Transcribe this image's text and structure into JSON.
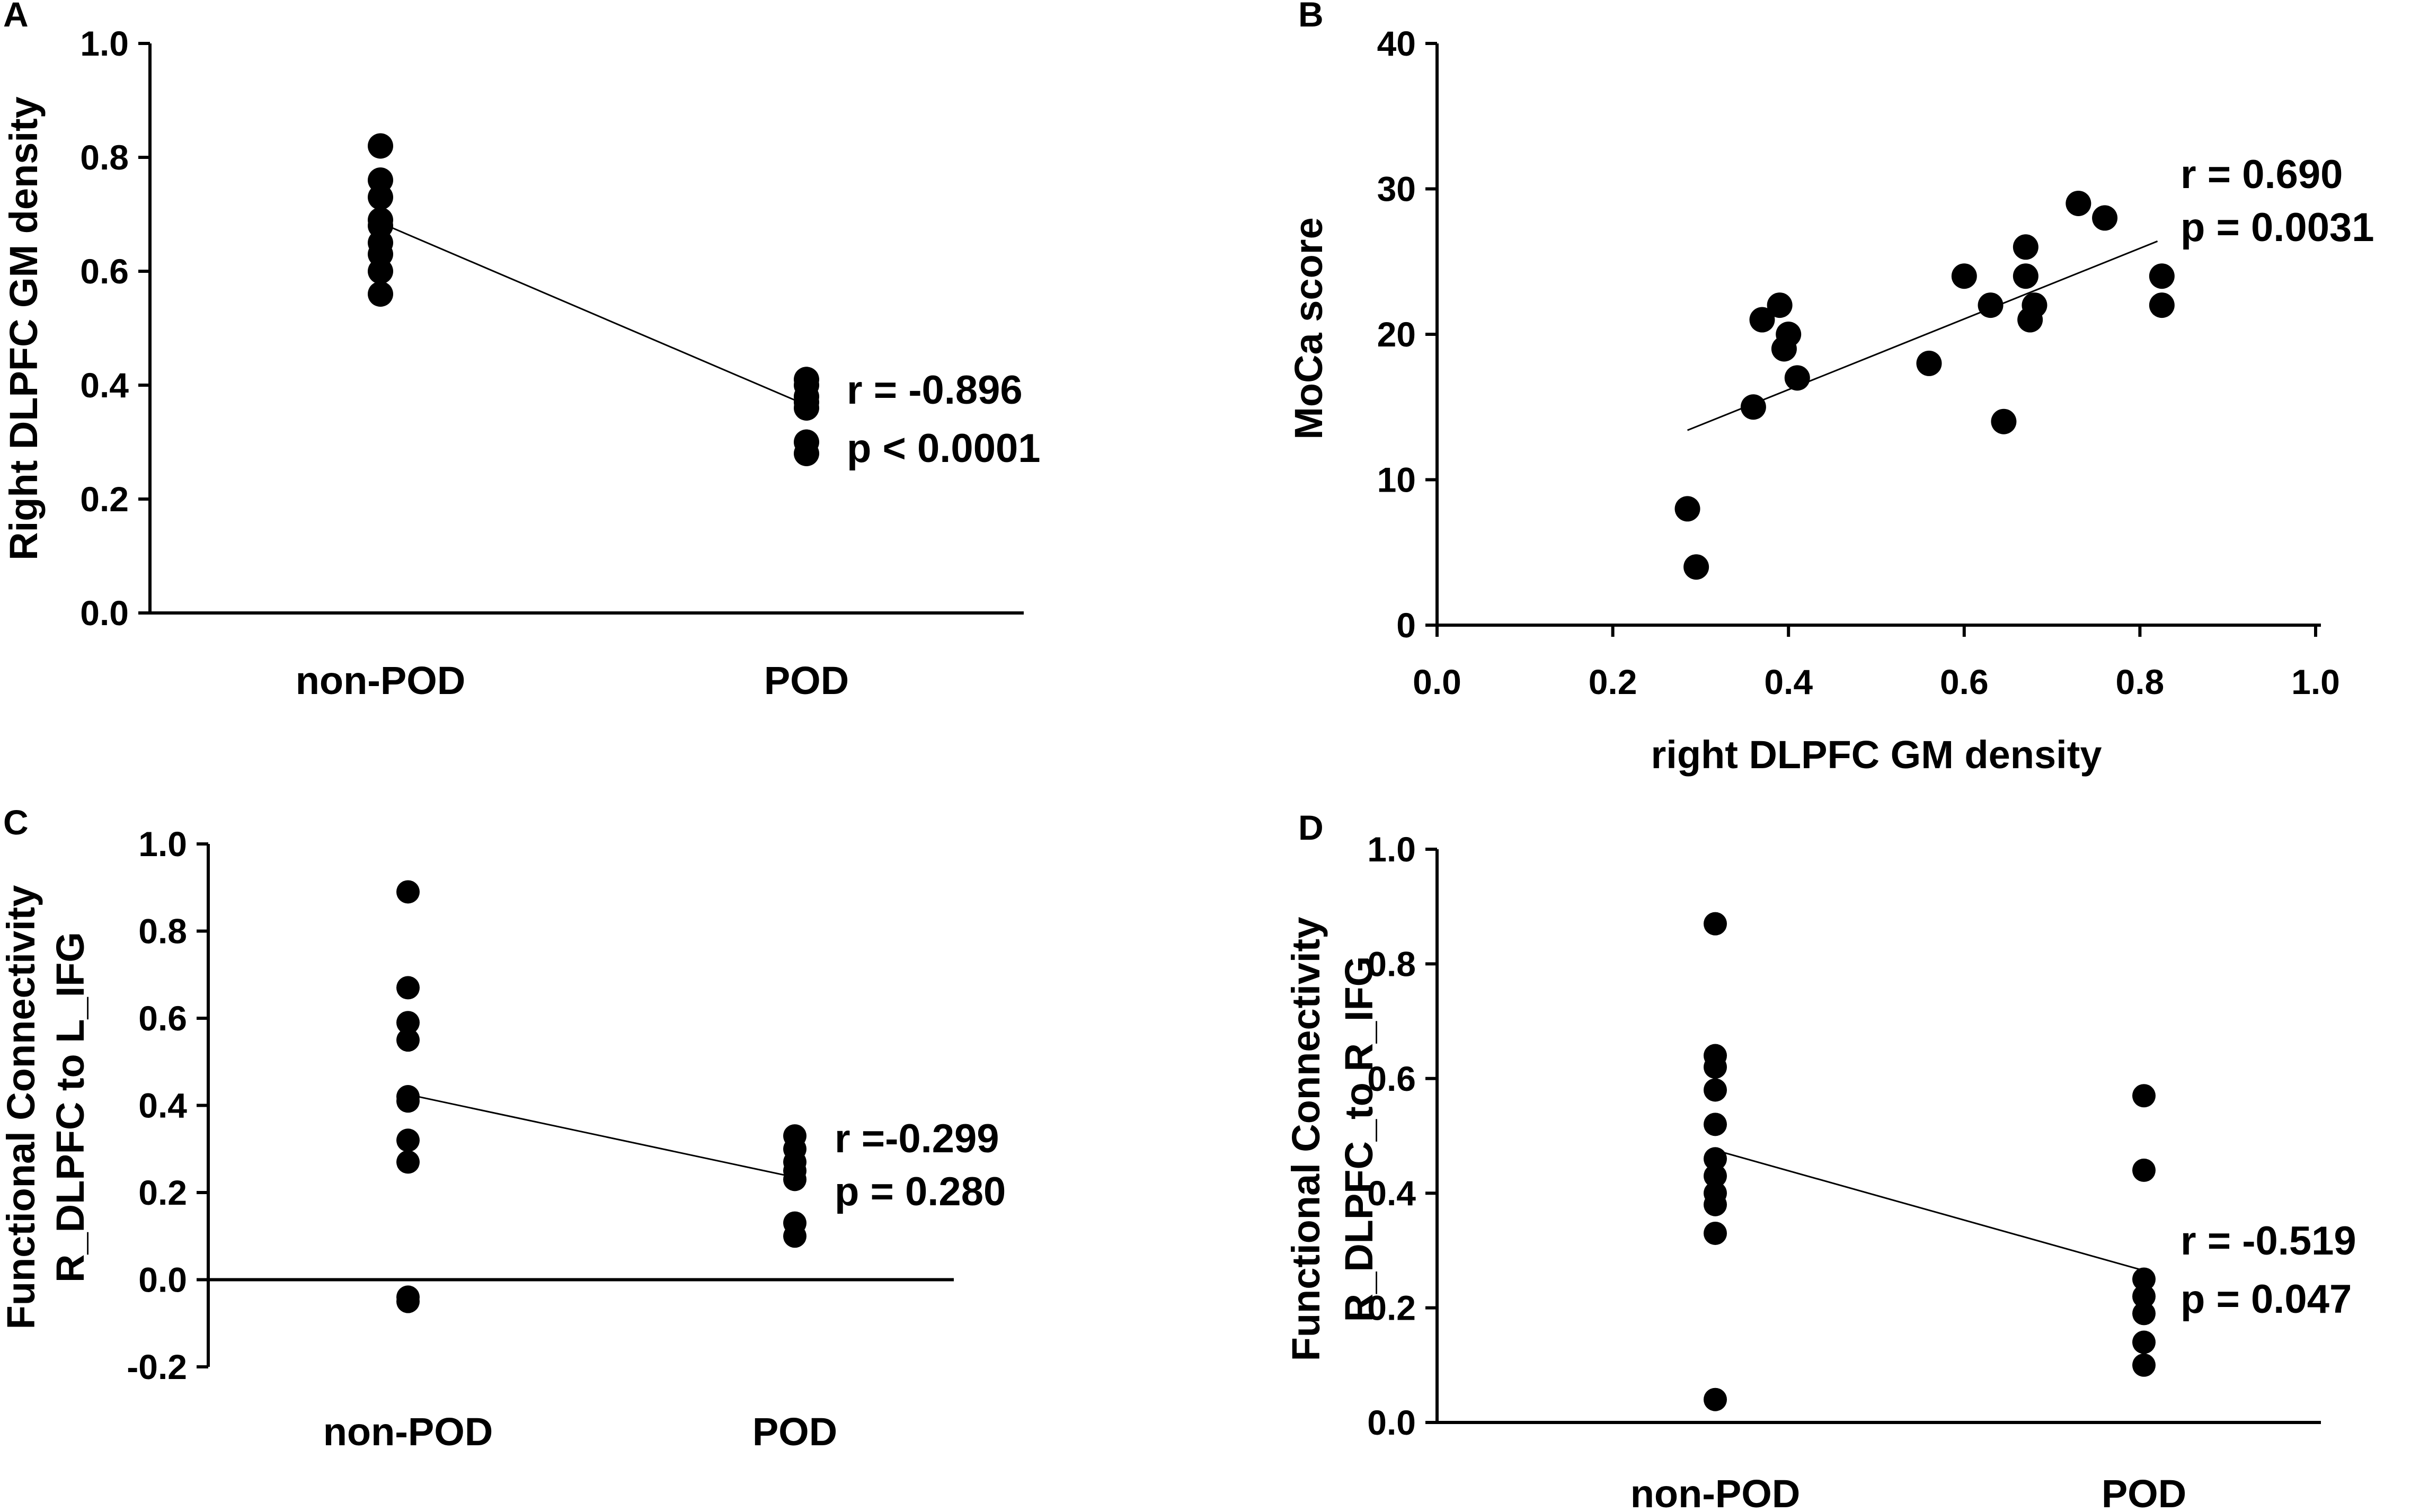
{
  "figure": {
    "background": "#ffffff",
    "marker_color": "#000000"
  },
  "chart_data": [
    {
      "panel": "A",
      "type": "scatter",
      "title": "",
      "xlabel": "",
      "ylabel": "Right DLPFC GM density",
      "categories": [
        "non-POD",
        "POD"
      ],
      "ylim": [
        0,
        1
      ],
      "yticks": [
        0,
        0.2,
        0.4,
        0.6,
        0.8,
        1.0
      ],
      "ytick_labels": [
        "0.0",
        "0.2",
        "0.4",
        "0.6",
        "0.8",
        "1.0"
      ],
      "series": [
        {
          "name": "non-POD",
          "values": [
            0.82,
            0.76,
            0.73,
            0.69,
            0.68,
            0.65,
            0.63,
            0.6,
            0.56
          ]
        },
        {
          "name": "POD",
          "values": [
            0.41,
            0.4,
            0.38,
            0.37,
            0.36,
            0.3,
            0.28
          ]
        }
      ],
      "mean_line": [
        0.685,
        0.365
      ],
      "annotation": {
        "r": "r = -0.896",
        "p": "p < 0.0001"
      }
    },
    {
      "panel": "B",
      "type": "scatter",
      "title": "",
      "xlabel": "right DLPFC GM density",
      "ylabel": "MoCa score",
      "xlim": [
        0,
        1
      ],
      "ylim": [
        0,
        40
      ],
      "xticks": [
        0,
        0.2,
        0.4,
        0.6,
        0.8,
        1.0
      ],
      "xtick_labels": [
        "0.0",
        "0.2",
        "0.4",
        "0.6",
        "0.8",
        "1.0"
      ],
      "yticks": [
        0,
        10,
        20,
        30,
        40
      ],
      "ytick_labels": [
        "0",
        "10",
        "20",
        "30",
        "40"
      ],
      "points": [
        {
          "x": 0.285,
          "y": 8
        },
        {
          "x": 0.295,
          "y": 4
        },
        {
          "x": 0.36,
          "y": 15
        },
        {
          "x": 0.37,
          "y": 21
        },
        {
          "x": 0.39,
          "y": 22
        },
        {
          "x": 0.395,
          "y": 19
        },
        {
          "x": 0.4,
          "y": 20
        },
        {
          "x": 0.41,
          "y": 17
        },
        {
          "x": 0.56,
          "y": 18
        },
        {
          "x": 0.6,
          "y": 24
        },
        {
          "x": 0.63,
          "y": 22
        },
        {
          "x": 0.645,
          "y": 14
        },
        {
          "x": 0.67,
          "y": 26
        },
        {
          "x": 0.67,
          "y": 24
        },
        {
          "x": 0.675,
          "y": 21
        },
        {
          "x": 0.68,
          "y": 22
        },
        {
          "x": 0.73,
          "y": 29
        },
        {
          "x": 0.76,
          "y": 28
        },
        {
          "x": 0.825,
          "y": 24
        },
        {
          "x": 0.825,
          "y": 22
        }
      ],
      "fit_line": {
        "x": [
          0.285,
          0.82
        ],
        "y": [
          13.4,
          26.4
        ]
      },
      "annotation": {
        "r": "r = 0.690",
        "p": "p = 0.0031"
      }
    },
    {
      "panel": "C",
      "type": "scatter",
      "title": "",
      "xlabel": "",
      "ylabel": "Functional Connectivity",
      "ylabel2": "R_DLPFC to L_IFG",
      "categories": [
        "non-POD",
        "POD"
      ],
      "ylim": [
        -0.2,
        1
      ],
      "yticks": [
        -0.2,
        0,
        0.2,
        0.4,
        0.6,
        0.8,
        1.0
      ],
      "ytick_labels": [
        "-0.2",
        "0.0",
        "0.2",
        "0.4",
        "0.6",
        "0.8",
        "1.0"
      ],
      "series": [
        {
          "name": "non-POD",
          "values": [
            0.89,
            0.67,
            0.59,
            0.55,
            0.42,
            0.41,
            0.32,
            0.27,
            -0.04,
            -0.05
          ]
        },
        {
          "name": "POD",
          "values": [
            0.33,
            0.3,
            0.27,
            0.25,
            0.23,
            0.13,
            0.1
          ]
        }
      ],
      "mean_line": [
        0.425,
        0.235
      ],
      "annotation": {
        "r": "r =-0.299",
        "p": "p = 0.280"
      }
    },
    {
      "panel": "D",
      "type": "scatter",
      "title": "",
      "xlabel": "",
      "ylabel": "Functional Connectivity",
      "ylabel2": "R_DLPFC_to R_IFG",
      "categories": [
        "non-POD",
        "POD"
      ],
      "ylim": [
        0,
        1
      ],
      "yticks": [
        0,
        0.2,
        0.4,
        0.6,
        0.8,
        1.0
      ],
      "ytick_labels": [
        "0.0",
        "0.2",
        "0.4",
        "0.6",
        "0.8",
        "1.0"
      ],
      "series": [
        {
          "name": "non-POD",
          "values": [
            0.87,
            0.64,
            0.62,
            0.58,
            0.52,
            0.46,
            0.43,
            0.4,
            0.38,
            0.33,
            0.04
          ]
        },
        {
          "name": "POD",
          "values": [
            0.57,
            0.44,
            0.25,
            0.22,
            0.19,
            0.14,
            0.1
          ]
        }
      ],
      "mean_line": [
        0.475,
        0.265
      ],
      "annotation": {
        "r": "r = -0.519",
        "p": "p = 0.047"
      }
    }
  ]
}
